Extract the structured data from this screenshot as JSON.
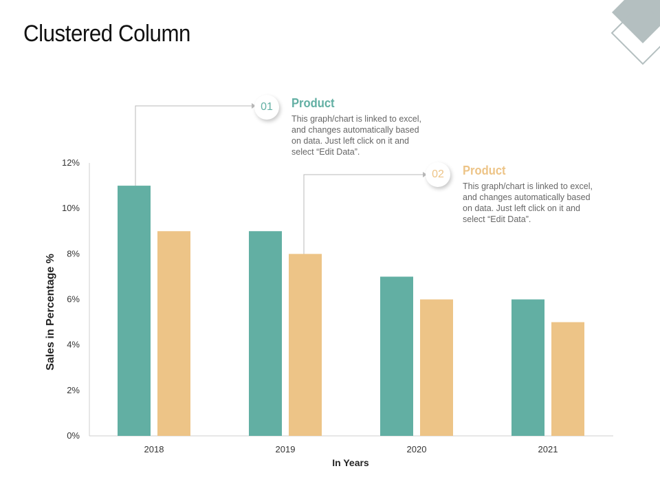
{
  "page": {
    "title": "Clustered Column"
  },
  "colors": {
    "series1": "#62afa3",
    "series2": "#edc487",
    "axis": "#cfcfcf",
    "connector": "#b9b9b9",
    "deco_fill": "#b4bfc0",
    "deco_line": "#b4bfc0"
  },
  "callouts": [
    {
      "number": "01",
      "title": "Product",
      "color": "#62afa3",
      "text": "This graph/chart is linked to excel, and changes automatically based on data. Just left click on it and select “Edit Data”."
    },
    {
      "number": "02",
      "title": "Product",
      "color": "#edc487",
      "text": "This graph/chart is linked to excel, and changes automatically based on data. Just left click on it and select “Edit Data”."
    }
  ],
  "chart_data": {
    "type": "bar",
    "title": "",
    "xlabel": "In Years",
    "ylabel": "Sales in Percentage %",
    "categories": [
      "2018",
      "2019",
      "2020",
      "2021"
    ],
    "series": [
      {
        "values": [
          11,
          9,
          7,
          6
        ]
      },
      {
        "values": [
          9,
          8,
          6,
          5
        ]
      }
    ],
    "ylim": [
      0,
      12
    ],
    "yticks": [
      0,
      2,
      4,
      6,
      8,
      10,
      12
    ],
    "ytick_labels": [
      "0%",
      "2%",
      "4%",
      "6%",
      "8%",
      "10%",
      "12%"
    ],
    "grid": false,
    "legend": "none"
  }
}
